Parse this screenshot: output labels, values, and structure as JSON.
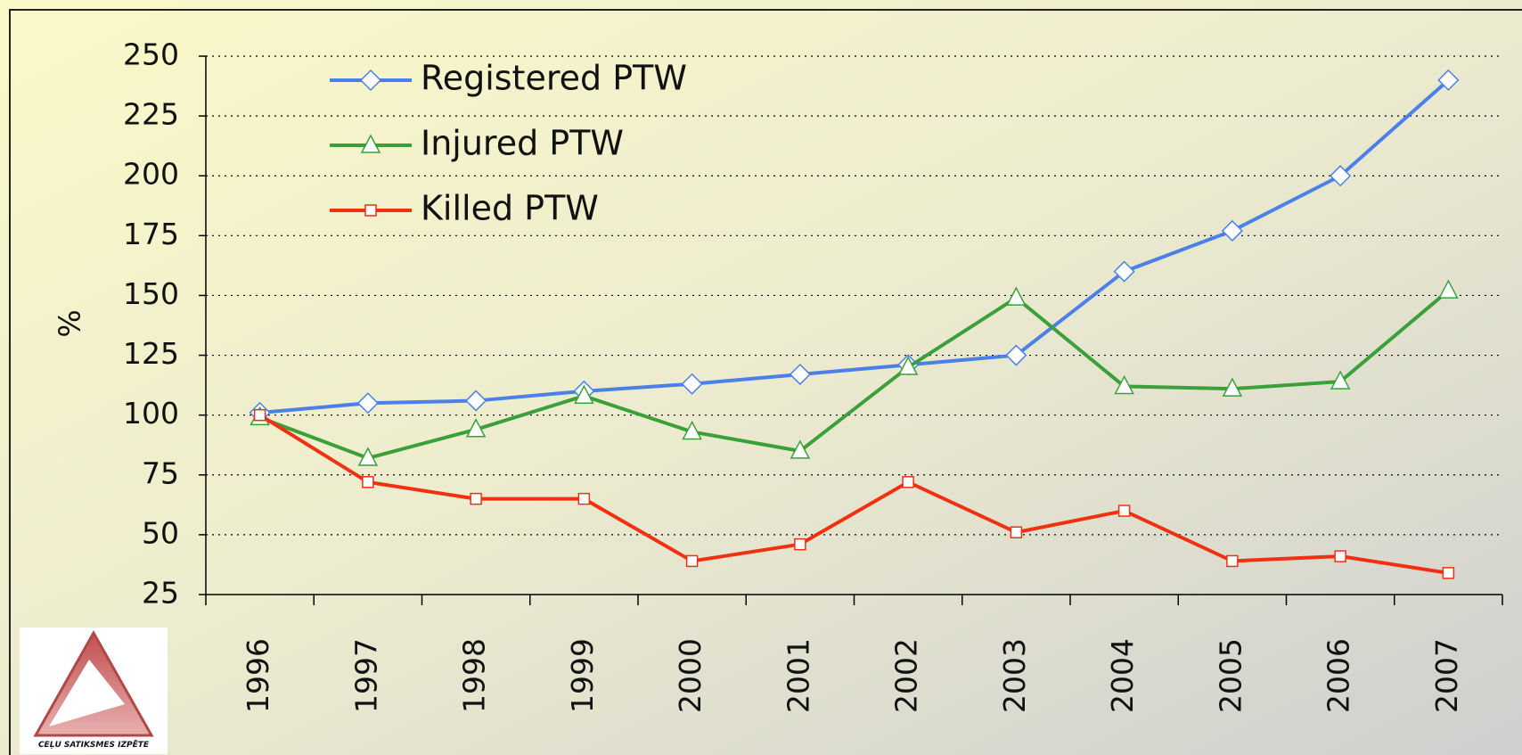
{
  "chart_data": {
    "type": "line",
    "y_label": "%",
    "logo_text": "CEĻU SATIKSMES IZPĒTE",
    "categories": [
      "1996",
      "1997",
      "1998",
      "1999",
      "2000",
      "2001",
      "2002",
      "2003",
      "2004",
      "2005",
      "2006",
      "2007"
    ],
    "series": [
      {
        "name": "Registered PTW",
        "color": "#4a80e8",
        "marker": "diamond",
        "values": [
          101,
          105,
          106,
          110,
          113,
          117,
          121,
          125,
          160,
          177,
          200,
          240
        ]
      },
      {
        "name": "Injured PTW",
        "color": "#3aa03a",
        "marker": "triangle",
        "values": [
          99,
          82,
          94,
          108,
          93,
          85,
          120,
          149,
          112,
          111,
          114,
          152
        ]
      },
      {
        "name": "Killed PTW",
        "color": "#f03010",
        "marker": "square",
        "values": [
          100,
          72,
          65,
          65,
          39,
          46,
          72,
          51,
          60,
          39,
          41,
          34
        ]
      }
    ],
    "ylim": [
      25,
      250
    ],
    "yticks": [
      25,
      50,
      75,
      100,
      125,
      150,
      175,
      200,
      225,
      250
    ],
    "grid": true
  }
}
